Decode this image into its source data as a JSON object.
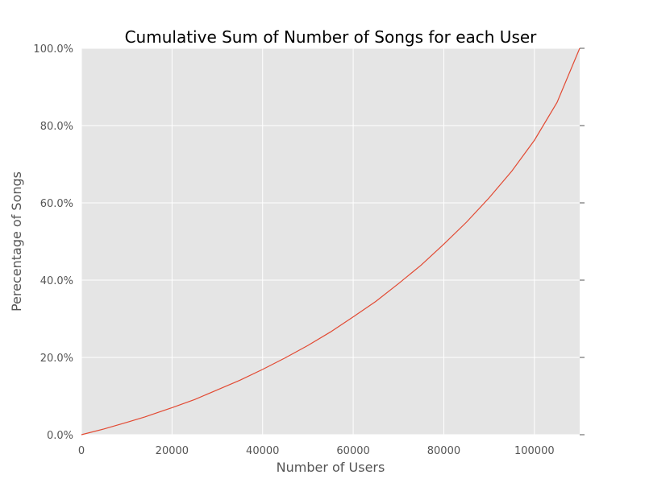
{
  "chart_data": {
    "type": "line",
    "title": "Cumulative Sum of Number of Songs for each User",
    "xlabel": "Number of Users",
    "ylabel": "Perecentage of Songs",
    "xlim": [
      0,
      110000
    ],
    "ylim": [
      0,
      100
    ],
    "grid": true,
    "x_ticks": [
      0,
      20000,
      40000,
      60000,
      80000,
      100000
    ],
    "x_tick_labels": [
      "0",
      "20000",
      "40000",
      "60000",
      "80000",
      "100000"
    ],
    "y_ticks": [
      0,
      20,
      40,
      60,
      80,
      100
    ],
    "y_tick_labels": [
      "0.0%",
      "20.0%",
      "40.0%",
      "60.0%",
      "80.0%",
      "100.0%"
    ],
    "series": [
      {
        "color": "#e24a33",
        "points": [
          [
            0,
            0
          ],
          [
            5000,
            1.5
          ],
          [
            10000,
            3.2
          ],
          [
            14000,
            4.6
          ],
          [
            20000,
            7.0
          ],
          [
            25000,
            9.1
          ],
          [
            30000,
            11.6
          ],
          [
            35000,
            14.1
          ],
          [
            40000,
            16.9
          ],
          [
            45000,
            19.9
          ],
          [
            50000,
            23.1
          ],
          [
            55000,
            26.6
          ],
          [
            60000,
            30.5
          ],
          [
            65000,
            34.5
          ],
          [
            70000,
            39.1
          ],
          [
            75000,
            43.9
          ],
          [
            80000,
            49.3
          ],
          [
            85000,
            55.0
          ],
          [
            90000,
            61.3
          ],
          [
            95000,
            68.2
          ],
          [
            100000,
            76.2
          ],
          [
            105000,
            86.0
          ],
          [
            110000,
            100.0
          ]
        ]
      }
    ]
  }
}
